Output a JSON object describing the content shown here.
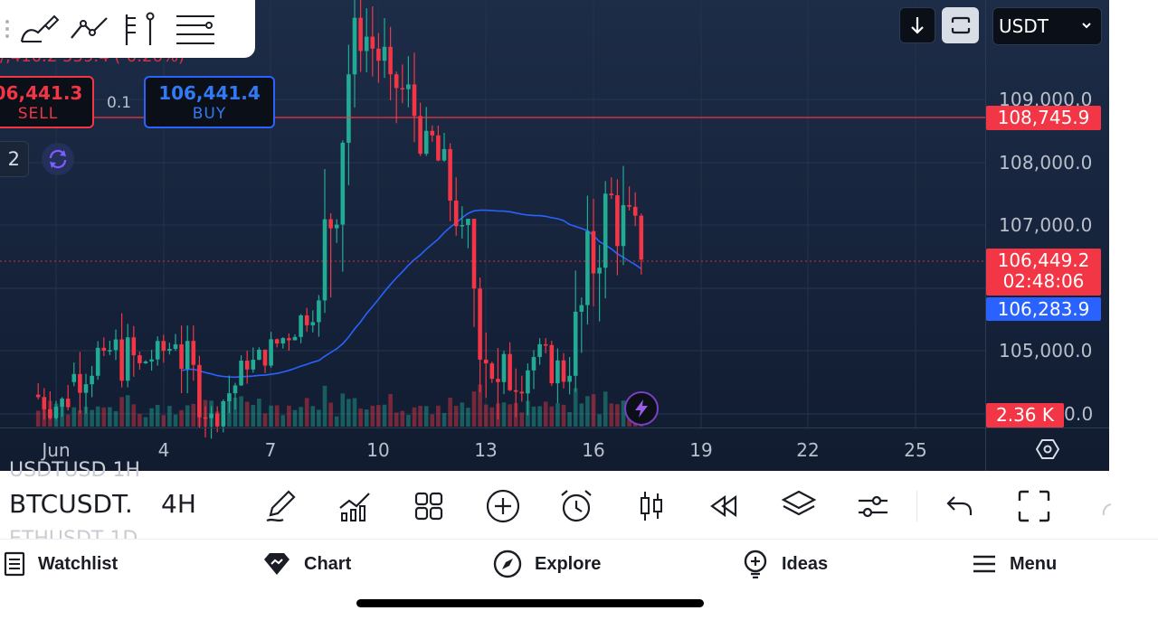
{
  "drawing_toolbar": {
    "tools": [
      "brush-tool-icon",
      "trend-line-icon",
      "fib-tool-icon",
      "templates-list-icon"
    ]
  },
  "trade_panel": {
    "top_partial_text": "/,410.2  559.4 (-0.26%)",
    "sell_price": "06,441.3",
    "sell_label": "SELL",
    "quantity": "0.1",
    "buy_price": "106,441.4",
    "buy_label": "BUY",
    "counter_badge": "2"
  },
  "top_right": {
    "symbol_select": "USDT"
  },
  "price_axis": {
    "labels": [
      "109,000.0",
      "108,000.0",
      "107,000.0",
      "105,000.0",
      "0.0"
    ]
  },
  "tags": {
    "horizontal_line_price": "108,745.9",
    "last_price": "106,449.2",
    "countdown": "02:48:06",
    "moving_average": "106,283.9",
    "volume": "2.36 K"
  },
  "colors": {
    "up": "#22ab94",
    "down": "#f23645",
    "ma": "#2962ff",
    "background": "#16233b"
  },
  "date_axis": {
    "labels": [
      "Jun",
      "4",
      "7",
      "10",
      "13",
      "16",
      "19",
      "22",
      "25"
    ]
  },
  "bottom_toolbar": {
    "ghost_top": "USDTUSD   1H",
    "symbol": "BTCUSDT.",
    "timeframe": "4H",
    "ghost_bottom": "ETHUSDT   1D",
    "icons": [
      "pencil-icon",
      "indicators-icon",
      "layouts-icon",
      "add-icon",
      "alert-icon",
      "candles-icon",
      "replay-icon",
      "layers-icon",
      "settings-sliders-icon",
      "undo-icon",
      "fullscreen-icon"
    ]
  },
  "tab_bar": {
    "tabs": [
      {
        "label": "Watchlist",
        "icon": "watchlist-icon"
      },
      {
        "label": "Chart",
        "icon": "chart-gem-icon"
      },
      {
        "label": "Explore",
        "icon": "compass-icon"
      },
      {
        "label": "Ideas",
        "icon": "ideas-icon"
      },
      {
        "label": "Menu",
        "icon": "menu-icon"
      }
    ]
  },
  "chart_data": {
    "type": "candlestick",
    "symbol": "BTCUSDT",
    "timeframe": "4H",
    "x_labels": [
      "Jun",
      "4",
      "7",
      "10",
      "13",
      "16",
      "19",
      "22",
      "25"
    ],
    "y_ticks": [
      105000,
      107000,
      108000,
      109000
    ],
    "horizontal_line": 108745.9,
    "last_price": 106449.2,
    "moving_average_last": 106283.9,
    "volume_last": "2.36 K",
    "ohlc_approx": [
      {
        "day": "Jun 1",
        "o": 104300,
        "h": 105200,
        "l": 103900,
        "c": 104100
      },
      {
        "day": "Jun 2",
        "o": 104500,
        "h": 105500,
        "l": 104000,
        "c": 105000
      },
      {
        "day": "Jun 3",
        "o": 105000,
        "h": 106000,
        "l": 104200,
        "c": 104800
      },
      {
        "day": "Jun 4",
        "o": 104800,
        "h": 105300,
        "l": 104400,
        "c": 105100
      },
      {
        "day": "Jun 5",
        "o": 105100,
        "h": 105400,
        "l": 103600,
        "c": 104000
      },
      {
        "day": "Jun 6",
        "o": 104000,
        "h": 105000,
        "l": 103700,
        "c": 104700
      },
      {
        "day": "Jun 7",
        "o": 104700,
        "h": 105300,
        "l": 104400,
        "c": 105200
      },
      {
        "day": "Jun 8",
        "o": 105200,
        "h": 106000,
        "l": 105000,
        "c": 105800
      },
      {
        "day": "Jun 9",
        "o": 105800,
        "h": 110600,
        "l": 105600,
        "c": 110300
      },
      {
        "day": "Jun 10",
        "o": 110300,
        "h": 110600,
        "l": 108600,
        "c": 109400
      },
      {
        "day": "Jun 11",
        "o": 109400,
        "h": 110400,
        "l": 108100,
        "c": 108500
      },
      {
        "day": "Jun 12",
        "o": 108500,
        "h": 108600,
        "l": 106600,
        "c": 107000
      },
      {
        "day": "Jun 13",
        "o": 107000,
        "h": 107100,
        "l": 102800,
        "c": 104500
      },
      {
        "day": "Jun 14",
        "o": 104500,
        "h": 105400,
        "l": 103500,
        "c": 104900
      },
      {
        "day": "Jun 15",
        "o": 104900,
        "h": 105200,
        "l": 103900,
        "c": 104600
      },
      {
        "day": "Jun 16",
        "o": 104600,
        "h": 107700,
        "l": 104000,
        "c": 107500
      },
      {
        "day": "Jun 17",
        "o": 107500,
        "h": 108900,
        "l": 106200,
        "c": 106449
      }
    ]
  }
}
